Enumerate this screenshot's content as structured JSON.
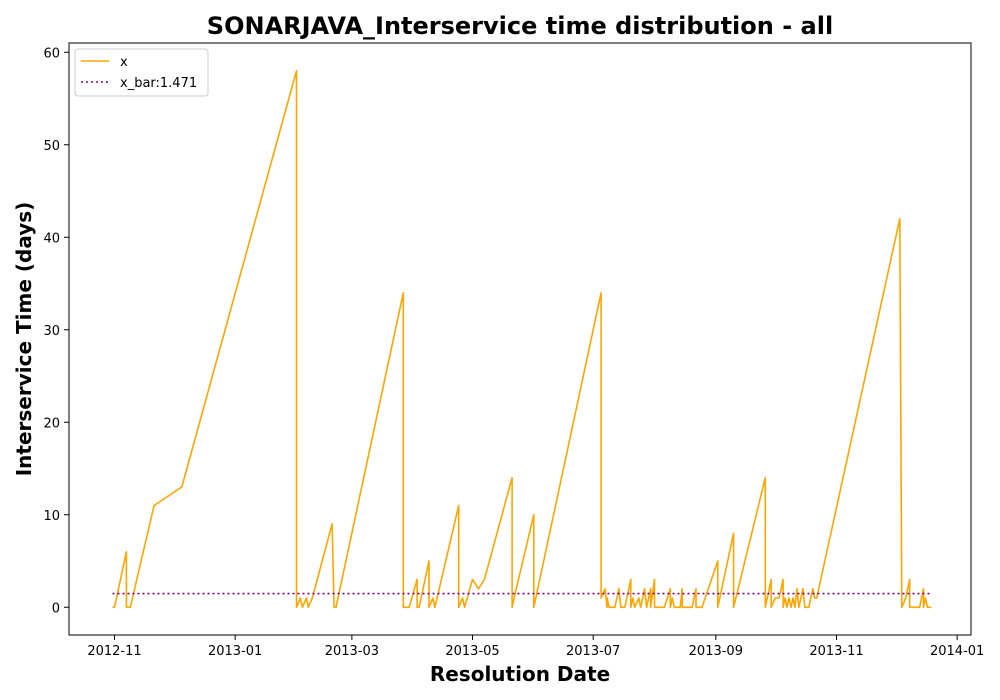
{
  "chart_data": {
    "type": "line",
    "title": "SONARJAVA_Interservice time distribution - all",
    "xlabel": "Resolution Date",
    "ylabel": "Interservice Time (days)",
    "xlim": [
      "2012-10-09",
      "2014-01-08"
    ],
    "ylim": [
      -3,
      61
    ],
    "x_ticks": [
      "2012-11-01",
      "2013-01-01",
      "2013-03-01",
      "2013-05-01",
      "2013-07-01",
      "2013-09-01",
      "2013-11-01",
      "2014-01-01"
    ],
    "x_tick_labels": [
      "2012-11",
      "2013-01",
      "2013-03",
      "2013-05",
      "2013-07",
      "2013-09",
      "2013-11",
      "2014-01"
    ],
    "y_ticks": [
      0,
      10,
      20,
      30,
      40,
      50,
      60
    ],
    "grid": false,
    "legend_position": "top-left",
    "series": [
      {
        "name": "x",
        "color": "#ffa500",
        "style": "solid",
        "points": [
          [
            "2012-10-31",
            0
          ],
          [
            "2012-11-01",
            0
          ],
          [
            "2012-11-07",
            6
          ],
          [
            "2012-11-07",
            0
          ],
          [
            "2012-11-09",
            0
          ],
          [
            "2012-11-21",
            11
          ],
          [
            "2012-12-05",
            13
          ],
          [
            "2013-02-01",
            58
          ],
          [
            "2013-02-01",
            0
          ],
          [
            "2013-02-03",
            1
          ],
          [
            "2013-02-04",
            0
          ],
          [
            "2013-02-06",
            1
          ],
          [
            "2013-02-07",
            0
          ],
          [
            "2013-02-09",
            1
          ],
          [
            "2013-02-19",
            9
          ],
          [
            "2013-02-20",
            0
          ],
          [
            "2013-02-21",
            0
          ],
          [
            "2013-03-27",
            34
          ],
          [
            "2013-03-27",
            0
          ],
          [
            "2013-03-30",
            0
          ],
          [
            "2013-04-03",
            3
          ],
          [
            "2013-04-03",
            0
          ],
          [
            "2013-04-04",
            0
          ],
          [
            "2013-04-09",
            5
          ],
          [
            "2013-04-09",
            0
          ],
          [
            "2013-04-11",
            1
          ],
          [
            "2013-04-12",
            0
          ],
          [
            "2013-04-24",
            11
          ],
          [
            "2013-04-24",
            0
          ],
          [
            "2013-04-26",
            1
          ],
          [
            "2013-04-27",
            0
          ],
          [
            "2013-05-01",
            3
          ],
          [
            "2013-05-04",
            2
          ],
          [
            "2013-05-07",
            3
          ],
          [
            "2013-05-21",
            14
          ],
          [
            "2013-05-21",
            0
          ],
          [
            "2013-05-22",
            1
          ],
          [
            "2013-06-01",
            10
          ],
          [
            "2013-06-01",
            0
          ],
          [
            "2013-07-05",
            34
          ],
          [
            "2013-07-05",
            1
          ],
          [
            "2013-07-07",
            2
          ],
          [
            "2013-07-08",
            0
          ],
          [
            "2013-07-08",
            1
          ],
          [
            "2013-07-09",
            0
          ],
          [
            "2013-07-12",
            0
          ],
          [
            "2013-07-14",
            2
          ],
          [
            "2013-07-15",
            0
          ],
          [
            "2013-07-17",
            0
          ],
          [
            "2013-07-20",
            3
          ],
          [
            "2013-07-20",
            0
          ],
          [
            "2013-07-21",
            1
          ],
          [
            "2013-07-22",
            0
          ],
          [
            "2013-07-24",
            1
          ],
          [
            "2013-07-25",
            0
          ],
          [
            "2013-07-27",
            2
          ],
          [
            "2013-07-28",
            0
          ],
          [
            "2013-07-30",
            2
          ],
          [
            "2013-07-30",
            0
          ],
          [
            "2013-08-01",
            3
          ],
          [
            "2013-08-01",
            0
          ],
          [
            "2013-08-04",
            0
          ],
          [
            "2013-08-06",
            0
          ],
          [
            "2013-08-09",
            2
          ],
          [
            "2013-08-09",
            0
          ],
          [
            "2013-08-10",
            1
          ],
          [
            "2013-08-11",
            0
          ],
          [
            "2013-08-14",
            0
          ],
          [
            "2013-08-15",
            2
          ],
          [
            "2013-08-15",
            0
          ],
          [
            "2013-08-18",
            0
          ],
          [
            "2013-08-20",
            0
          ],
          [
            "2013-08-22",
            2
          ],
          [
            "2013-08-22",
            0
          ],
          [
            "2013-08-25",
            0
          ],
          [
            "2013-09-02",
            5
          ],
          [
            "2013-09-02",
            0
          ],
          [
            "2013-09-10",
            8
          ],
          [
            "2013-09-10",
            0
          ],
          [
            "2013-09-26",
            14
          ],
          [
            "2013-09-26",
            0
          ],
          [
            "2013-09-28",
            2
          ],
          [
            "2013-09-29",
            3
          ],
          [
            "2013-09-29",
            0
          ],
          [
            "2013-10-01",
            1
          ],
          [
            "2013-10-03",
            1
          ],
          [
            "2013-10-05",
            3
          ],
          [
            "2013-10-05",
            0
          ],
          [
            "2013-10-06",
            1
          ],
          [
            "2013-10-07",
            0
          ],
          [
            "2013-10-08",
            1
          ],
          [
            "2013-10-09",
            0
          ],
          [
            "2013-10-10",
            1
          ],
          [
            "2013-10-11",
            0
          ],
          [
            "2013-10-12",
            2
          ],
          [
            "2013-10-13",
            0
          ],
          [
            "2013-10-14",
            1
          ],
          [
            "2013-10-15",
            2
          ],
          [
            "2013-10-16",
            0
          ],
          [
            "2013-10-18",
            0
          ],
          [
            "2013-10-20",
            2
          ],
          [
            "2013-10-21",
            1
          ],
          [
            "2013-10-22",
            1
          ],
          [
            "2013-12-03",
            42
          ],
          [
            "2013-12-04",
            0
          ],
          [
            "2013-12-06",
            1
          ],
          [
            "2013-12-08",
            3
          ],
          [
            "2013-12-08",
            0
          ],
          [
            "2013-12-10",
            0
          ],
          [
            "2013-12-13",
            0
          ],
          [
            "2013-12-15",
            2
          ],
          [
            "2013-12-15",
            0
          ],
          [
            "2013-12-16",
            1
          ],
          [
            "2013-12-17",
            0
          ],
          [
            "2013-12-19",
            0
          ]
        ]
      },
      {
        "name": "x_bar:1.471",
        "color": "#800080",
        "style": "dotted",
        "points": [
          [
            "2012-10-31",
            1.471
          ],
          [
            "2013-12-19",
            1.471
          ]
        ]
      }
    ]
  }
}
